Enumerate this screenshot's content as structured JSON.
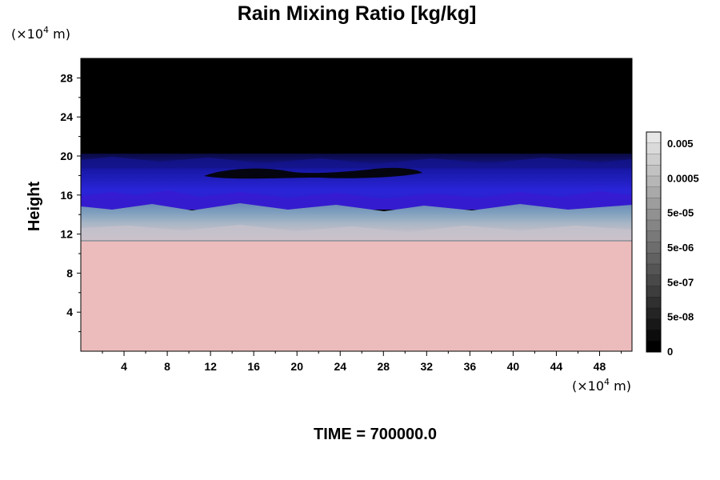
{
  "chart_data": {
    "type": "heatmap",
    "title": "Rain Mixing Ratio [kg/kg]",
    "ylabel": "Height",
    "x_unit": "(×10",
    "x_unit_exp": "4",
    "x_unit_tail": " m)",
    "y_unit": "(×10",
    "y_unit_exp": "4",
    "y_unit_tail": " m)",
    "xlim": [
      0,
      51
    ],
    "ylim": [
      0,
      30
    ],
    "x_ticks": [
      4,
      8,
      12,
      16,
      20,
      24,
      28,
      32,
      36,
      40,
      44,
      48
    ],
    "y_ticks": [
      4,
      8,
      12,
      16,
      20,
      24,
      28
    ],
    "x_tick_labels": [
      "4",
      "8",
      "12",
      "16",
      "20",
      "24",
      "28",
      "32",
      "36",
      "40",
      "44",
      "48"
    ],
    "y_tick_labels": [
      "4",
      "8",
      "12",
      "16",
      "20",
      "24",
      "28"
    ],
    "layers": [
      {
        "name": "lower",
        "y_from": 0,
        "y_to": 11.5,
        "color": "#ecbcbc"
      },
      {
        "name": "transition-grey",
        "y_from": 11.5,
        "y_to": 13,
        "color": "#b8b8c0"
      },
      {
        "name": "transition-blue",
        "y_from": 13,
        "y_to": 14.8,
        "color": "#7a9fba"
      },
      {
        "name": "purple",
        "y_from": 14.8,
        "y_to": 17,
        "color": "#3a1eb4"
      },
      {
        "name": "blue",
        "y_from": 17,
        "y_to": 19.5,
        "color": "#1c1c8c"
      },
      {
        "name": "upper",
        "y_from": 19.5,
        "y_to": 30,
        "color": "#000000"
      }
    ],
    "colorbar": {
      "labels": [
        "0.005",
        "0.0005",
        "5e-05",
        "5e-06",
        "5e-07",
        "5e-08",
        "0"
      ],
      "steps": 20,
      "color_top": "#e6e6e6",
      "color_bottom": "#000000"
    },
    "footer": "TIME = 700000.0"
  }
}
